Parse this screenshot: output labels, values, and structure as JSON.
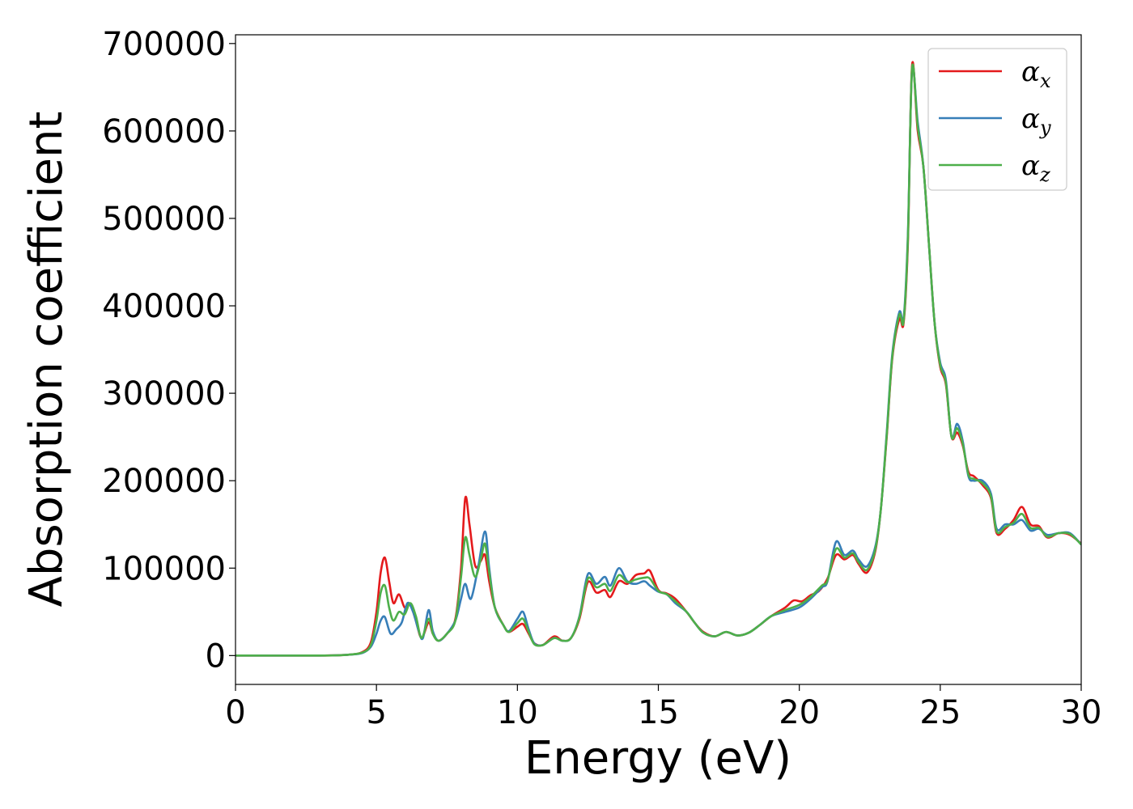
{
  "chart_data": {
    "type": "line",
    "xlabel": "Energy (eV)",
    "ylabel": "Absorption coefficient",
    "xlim": [
      0,
      30
    ],
    "ylim": [
      -33000,
      710000
    ],
    "xticks": [
      0,
      5,
      10,
      15,
      20,
      25,
      30
    ],
    "yticks": [
      0,
      100000,
      200000,
      300000,
      400000,
      500000,
      600000,
      700000
    ],
    "xtick_labels": [
      "0",
      "5",
      "10",
      "15",
      "20",
      "25",
      "30"
    ],
    "ytick_labels": [
      "0",
      "100000",
      "200000",
      "300000",
      "400000",
      "500000",
      "600000",
      "700000"
    ],
    "grid": false,
    "legend_position": "top-right",
    "series": [
      {
        "name": "α_x",
        "label_symbol": "α",
        "label_subscript": "x",
        "color": "#e41a1c",
        "points": [
          [
            0,
            0
          ],
          [
            3,
            0
          ],
          [
            4,
            1000
          ],
          [
            4.5,
            4000
          ],
          [
            4.8,
            15000
          ],
          [
            5.0,
            50000
          ],
          [
            5.15,
            95000
          ],
          [
            5.3,
            112000
          ],
          [
            5.45,
            85000
          ],
          [
            5.6,
            60000
          ],
          [
            5.8,
            70000
          ],
          [
            6.0,
            55000
          ],
          [
            6.2,
            58000
          ],
          [
            6.4,
            40000
          ],
          [
            6.6,
            20000
          ],
          [
            6.85,
            38000
          ],
          [
            7.0,
            25000
          ],
          [
            7.2,
            17000
          ],
          [
            7.5,
            25000
          ],
          [
            7.8,
            42000
          ],
          [
            8.0,
            100000
          ],
          [
            8.15,
            180000
          ],
          [
            8.3,
            150000
          ],
          [
            8.5,
            103000
          ],
          [
            8.7,
            108000
          ],
          [
            8.85,
            115000
          ],
          [
            9.0,
            85000
          ],
          [
            9.2,
            55000
          ],
          [
            9.5,
            35000
          ],
          [
            9.7,
            27000
          ],
          [
            10.0,
            33000
          ],
          [
            10.2,
            36000
          ],
          [
            10.4,
            25000
          ],
          [
            10.6,
            14000
          ],
          [
            10.9,
            12000
          ],
          [
            11.3,
            22000
          ],
          [
            11.6,
            17000
          ],
          [
            11.9,
            20000
          ],
          [
            12.2,
            42000
          ],
          [
            12.5,
            84000
          ],
          [
            12.8,
            72000
          ],
          [
            13.1,
            75000
          ],
          [
            13.3,
            67000
          ],
          [
            13.6,
            85000
          ],
          [
            13.9,
            82000
          ],
          [
            14.2,
            92000
          ],
          [
            14.5,
            94000
          ],
          [
            14.7,
            97000
          ],
          [
            15.0,
            75000
          ],
          [
            15.3,
            71000
          ],
          [
            15.6,
            65000
          ],
          [
            16.0,
            50000
          ],
          [
            16.3,
            37000
          ],
          [
            16.6,
            27000
          ],
          [
            17.0,
            22000
          ],
          [
            17.4,
            27000
          ],
          [
            17.8,
            23000
          ],
          [
            18.2,
            26000
          ],
          [
            18.6,
            35000
          ],
          [
            19.0,
            45000
          ],
          [
            19.5,
            55000
          ],
          [
            19.8,
            63000
          ],
          [
            20.1,
            62000
          ],
          [
            20.4,
            69000
          ],
          [
            20.7,
            74000
          ],
          [
            21.0,
            88000
          ],
          [
            21.3,
            115000
          ],
          [
            21.6,
            110000
          ],
          [
            21.9,
            115000
          ],
          [
            22.1,
            105000
          ],
          [
            22.4,
            95000
          ],
          [
            22.7,
            120000
          ],
          [
            22.9,
            170000
          ],
          [
            23.1,
            250000
          ],
          [
            23.3,
            340000
          ],
          [
            23.55,
            385000
          ],
          [
            23.7,
            380000
          ],
          [
            23.85,
            470000
          ],
          [
            24.0,
            675000
          ],
          [
            24.2,
            600000
          ],
          [
            24.4,
            560000
          ],
          [
            24.6,
            470000
          ],
          [
            24.8,
            380000
          ],
          [
            25.0,
            330000
          ],
          [
            25.2,
            310000
          ],
          [
            25.4,
            250000
          ],
          [
            25.6,
            255000
          ],
          [
            25.8,
            240000
          ],
          [
            26.0,
            210000
          ],
          [
            26.2,
            205000
          ],
          [
            26.5,
            195000
          ],
          [
            26.8,
            180000
          ],
          [
            27.0,
            140000
          ],
          [
            27.3,
            145000
          ],
          [
            27.6,
            155000
          ],
          [
            27.9,
            170000
          ],
          [
            28.2,
            150000
          ],
          [
            28.5,
            148000
          ],
          [
            28.8,
            135000
          ],
          [
            29.2,
            140000
          ],
          [
            29.6,
            138000
          ],
          [
            30,
            128000
          ]
        ]
      },
      {
        "name": "α_y",
        "label_symbol": "α",
        "label_subscript": "y",
        "color": "#377eb8",
        "points": [
          [
            0,
            0
          ],
          [
            3,
            0
          ],
          [
            4,
            1000
          ],
          [
            4.5,
            3000
          ],
          [
            4.8,
            10000
          ],
          [
            5.0,
            25000
          ],
          [
            5.15,
            40000
          ],
          [
            5.3,
            44000
          ],
          [
            5.5,
            25000
          ],
          [
            5.7,
            30000
          ],
          [
            5.9,
            38000
          ],
          [
            6.1,
            60000
          ],
          [
            6.3,
            50000
          ],
          [
            6.5,
            28000
          ],
          [
            6.65,
            20000
          ],
          [
            6.85,
            52000
          ],
          [
            7.0,
            28000
          ],
          [
            7.2,
            17000
          ],
          [
            7.5,
            25000
          ],
          [
            7.8,
            40000
          ],
          [
            8.0,
            65000
          ],
          [
            8.15,
            82000
          ],
          [
            8.35,
            65000
          ],
          [
            8.6,
            100000
          ],
          [
            8.85,
            142000
          ],
          [
            9.0,
            100000
          ],
          [
            9.2,
            55000
          ],
          [
            9.5,
            35000
          ],
          [
            9.7,
            28000
          ],
          [
            10.0,
            42000
          ],
          [
            10.2,
            50000
          ],
          [
            10.4,
            30000
          ],
          [
            10.6,
            14000
          ],
          [
            10.9,
            12000
          ],
          [
            11.3,
            20000
          ],
          [
            11.6,
            17000
          ],
          [
            11.9,
            20000
          ],
          [
            12.2,
            45000
          ],
          [
            12.5,
            93000
          ],
          [
            12.8,
            82000
          ],
          [
            13.1,
            90000
          ],
          [
            13.3,
            80000
          ],
          [
            13.6,
            100000
          ],
          [
            13.9,
            85000
          ],
          [
            14.2,
            82000
          ],
          [
            14.5,
            85000
          ],
          [
            14.7,
            80000
          ],
          [
            15.0,
            73000
          ],
          [
            15.3,
            70000
          ],
          [
            15.6,
            60000
          ],
          [
            16.0,
            50000
          ],
          [
            16.3,
            37000
          ],
          [
            16.6,
            26000
          ],
          [
            17.0,
            22000
          ],
          [
            17.4,
            27000
          ],
          [
            17.8,
            23000
          ],
          [
            18.2,
            26000
          ],
          [
            18.6,
            35000
          ],
          [
            19.0,
            45000
          ],
          [
            19.5,
            50000
          ],
          [
            20.0,
            55000
          ],
          [
            20.4,
            65000
          ],
          [
            20.8,
            78000
          ],
          [
            21.0,
            85000
          ],
          [
            21.3,
            130000
          ],
          [
            21.6,
            115000
          ],
          [
            21.9,
            120000
          ],
          [
            22.1,
            110000
          ],
          [
            22.4,
            102000
          ],
          [
            22.7,
            125000
          ],
          [
            22.9,
            170000
          ],
          [
            23.1,
            255000
          ],
          [
            23.3,
            345000
          ],
          [
            23.55,
            393000
          ],
          [
            23.7,
            385000
          ],
          [
            23.85,
            480000
          ],
          [
            24.0,
            670000
          ],
          [
            24.2,
            610000
          ],
          [
            24.4,
            560000
          ],
          [
            24.6,
            470000
          ],
          [
            24.8,
            380000
          ],
          [
            25.0,
            335000
          ],
          [
            25.2,
            315000
          ],
          [
            25.4,
            250000
          ],
          [
            25.6,
            265000
          ],
          [
            25.8,
            245000
          ],
          [
            26.0,
            205000
          ],
          [
            26.2,
            200000
          ],
          [
            26.5,
            200000
          ],
          [
            26.8,
            185000
          ],
          [
            27.0,
            145000
          ],
          [
            27.3,
            150000
          ],
          [
            27.6,
            150000
          ],
          [
            27.9,
            155000
          ],
          [
            28.2,
            143000
          ],
          [
            28.5,
            145000
          ],
          [
            28.8,
            138000
          ],
          [
            29.2,
            140000
          ],
          [
            29.6,
            140000
          ],
          [
            30,
            127000
          ]
        ]
      },
      {
        "name": "α_z",
        "label_symbol": "α",
        "label_subscript": "z",
        "color": "#4daf4a",
        "points": [
          [
            0,
            0
          ],
          [
            3,
            0
          ],
          [
            4,
            1000
          ],
          [
            4.5,
            3500
          ],
          [
            4.8,
            12000
          ],
          [
            5.0,
            40000
          ],
          [
            5.15,
            72000
          ],
          [
            5.3,
            80000
          ],
          [
            5.45,
            55000
          ],
          [
            5.6,
            40000
          ],
          [
            5.8,
            50000
          ],
          [
            6.0,
            47000
          ],
          [
            6.2,
            60000
          ],
          [
            6.4,
            45000
          ],
          [
            6.6,
            20000
          ],
          [
            6.85,
            42000
          ],
          [
            7.0,
            25000
          ],
          [
            7.2,
            17000
          ],
          [
            7.5,
            25000
          ],
          [
            7.8,
            40000
          ],
          [
            8.0,
            90000
          ],
          [
            8.15,
            135000
          ],
          [
            8.3,
            115000
          ],
          [
            8.5,
            90000
          ],
          [
            8.7,
            110000
          ],
          [
            8.85,
            128000
          ],
          [
            9.0,
            95000
          ],
          [
            9.2,
            55000
          ],
          [
            9.5,
            35000
          ],
          [
            9.7,
            27000
          ],
          [
            10.0,
            37000
          ],
          [
            10.2,
            42000
          ],
          [
            10.4,
            27000
          ],
          [
            10.6,
            13000
          ],
          [
            10.9,
            12000
          ],
          [
            11.3,
            20000
          ],
          [
            11.6,
            17000
          ],
          [
            11.9,
            20000
          ],
          [
            12.2,
            44000
          ],
          [
            12.5,
            88000
          ],
          [
            12.8,
            78000
          ],
          [
            13.1,
            82000
          ],
          [
            13.3,
            74000
          ],
          [
            13.6,
            92000
          ],
          [
            13.9,
            84000
          ],
          [
            14.2,
            87000
          ],
          [
            14.5,
            89000
          ],
          [
            14.7,
            88000
          ],
          [
            15.0,
            74000
          ],
          [
            15.3,
            70000
          ],
          [
            15.6,
            62000
          ],
          [
            16.0,
            50000
          ],
          [
            16.3,
            37000
          ],
          [
            16.6,
            26000
          ],
          [
            17.0,
            22000
          ],
          [
            17.4,
            27000
          ],
          [
            17.8,
            23000
          ],
          [
            18.2,
            26000
          ],
          [
            18.6,
            35000
          ],
          [
            19.0,
            45000
          ],
          [
            19.5,
            52000
          ],
          [
            20.0,
            58000
          ],
          [
            20.4,
            67000
          ],
          [
            20.8,
            80000
          ],
          [
            21.0,
            86000
          ],
          [
            21.3,
            122000
          ],
          [
            21.6,
            112000
          ],
          [
            21.9,
            117000
          ],
          [
            22.1,
            107000
          ],
          [
            22.4,
            98000
          ],
          [
            22.7,
            122000
          ],
          [
            22.9,
            170000
          ],
          [
            23.1,
            252000
          ],
          [
            23.3,
            342000
          ],
          [
            23.55,
            390000
          ],
          [
            23.7,
            382000
          ],
          [
            23.85,
            475000
          ],
          [
            24.0,
            672000
          ],
          [
            24.2,
            605000
          ],
          [
            24.4,
            560000
          ],
          [
            24.6,
            470000
          ],
          [
            24.8,
            380000
          ],
          [
            25.0,
            332000
          ],
          [
            25.2,
            312000
          ],
          [
            25.4,
            250000
          ],
          [
            25.6,
            260000
          ],
          [
            25.8,
            242000
          ],
          [
            26.0,
            207000
          ],
          [
            26.2,
            202000
          ],
          [
            26.5,
            197000
          ],
          [
            26.8,
            182000
          ],
          [
            27.0,
            142000
          ],
          [
            27.3,
            147000
          ],
          [
            27.6,
            152000
          ],
          [
            27.9,
            162000
          ],
          [
            28.2,
            146000
          ],
          [
            28.5,
            146000
          ],
          [
            28.8,
            136000
          ],
          [
            29.2,
            140000
          ],
          [
            29.6,
            139000
          ],
          [
            30,
            127000
          ]
        ]
      }
    ]
  }
}
